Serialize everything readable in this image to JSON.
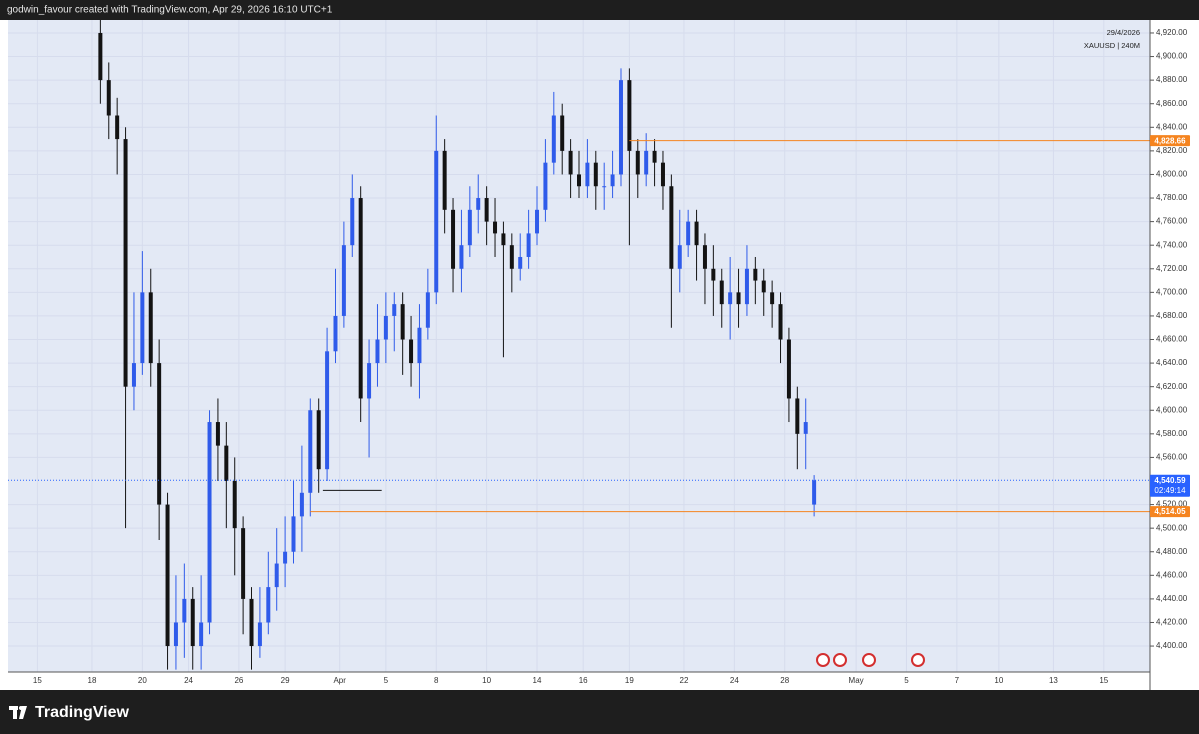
{
  "attribution": "godwin_favour created with TradingView.com, Apr 29, 2026 16:10 UTC+1",
  "brand": "TradingView",
  "chart_data": {
    "type": "candlestick",
    "annotations": [
      "29/4/2026",
      "XAUUSD | 240M"
    ],
    "up_color": "#2f5bea",
    "down_color": "#131313",
    "grid": true,
    "xlim": [
      0,
      272
    ],
    "ylim": [
      4378,
      4931
    ],
    "xticks": [
      {
        "value": 7,
        "label": "15"
      },
      {
        "value": 20,
        "label": "18"
      },
      {
        "value": 32,
        "label": "20"
      },
      {
        "value": 43,
        "label": "24"
      },
      {
        "value": 55,
        "label": "26"
      },
      {
        "value": 66,
        "label": "29"
      },
      {
        "value": 79,
        "label": "Apr"
      },
      {
        "value": 90,
        "label": "5"
      },
      {
        "value": 102,
        "label": "8"
      },
      {
        "value": 114,
        "label": "10"
      },
      {
        "value": 126,
        "label": "14"
      },
      {
        "value": 137,
        "label": "16"
      },
      {
        "value": 148,
        "label": "19"
      },
      {
        "value": 161,
        "label": "22"
      },
      {
        "value": 173,
        "label": "24"
      },
      {
        "value": 185,
        "label": "28"
      },
      {
        "value": 202,
        "label": "May"
      },
      {
        "value": 214,
        "label": "5"
      },
      {
        "value": 226,
        "label": "7"
      },
      {
        "value": 236,
        "label": "10"
      },
      {
        "value": 249,
        "label": "13"
      },
      {
        "value": 261,
        "label": "15"
      }
    ],
    "yticks": [
      {
        "value": 4400,
        "label": "4,400.00"
      },
      {
        "value": 4420,
        "label": "4,420.00"
      },
      {
        "value": 4440,
        "label": "4,440.00"
      },
      {
        "value": 4460,
        "label": "4,460.00"
      },
      {
        "value": 4480,
        "label": "4,480.00"
      },
      {
        "value": 4500,
        "label": "4,500.00"
      },
      {
        "value": 4520,
        "label": "4,520.00"
      },
      {
        "value": 4560,
        "label": "4,560.00"
      },
      {
        "value": 4580,
        "label": "4,580.00"
      },
      {
        "value": 4600,
        "label": "4,600.00"
      },
      {
        "value": 4620,
        "label": "4,620.00"
      },
      {
        "value": 4640,
        "label": "4,640.00"
      },
      {
        "value": 4660,
        "label": "4,660.00"
      },
      {
        "value": 4680,
        "label": "4,680.00"
      },
      {
        "value": 4700,
        "label": "4,700.00"
      },
      {
        "value": 4720,
        "label": "4,720.00"
      },
      {
        "value": 4740,
        "label": "4,740.00"
      },
      {
        "value": 4760,
        "label": "4,760.00"
      },
      {
        "value": 4780,
        "label": "4,780.00"
      },
      {
        "value": 4800,
        "label": "4,800.00"
      },
      {
        "value": 4820,
        "label": "4,820.00"
      },
      {
        "value": 4840,
        "label": "4,840.00"
      },
      {
        "value": 4860,
        "label": "4,860.00"
      },
      {
        "value": 4880,
        "label": "4,880.00"
      },
      {
        "value": 4900,
        "label": "4,900.00"
      },
      {
        "value": 4920,
        "label": "4,920.00"
      }
    ],
    "x": [
      22,
      24,
      26,
      28,
      30,
      32,
      34,
      36,
      38,
      40,
      42,
      44,
      46,
      48,
      50,
      52,
      54,
      56,
      58,
      60,
      62,
      64,
      66,
      68,
      70,
      72,
      74,
      76,
      78,
      80,
      82,
      84,
      86,
      88,
      90,
      92,
      94,
      96,
      98,
      100,
      102,
      104,
      106,
      108,
      110,
      112,
      114,
      116,
      118,
      120,
      122,
      124,
      126,
      128,
      130,
      132,
      134,
      136,
      138,
      140,
      142,
      144,
      146,
      148,
      150,
      152,
      154,
      156,
      158,
      160,
      162,
      164,
      166,
      168,
      170,
      172,
      174,
      176,
      178,
      180,
      182,
      184,
      186,
      188,
      190,
      192
    ],
    "open": [
      4920,
      4880,
      4850,
      4830,
      4620,
      4640,
      4700,
      4640,
      4520,
      4400,
      4420,
      4440,
      4400,
      4420,
      4590,
      4570,
      4540,
      4500,
      4440,
      4400,
      4420,
      4450,
      4470,
      4480,
      4510,
      4530,
      4600,
      4550,
      4650,
      4680,
      4740,
      4780,
      4610,
      4640,
      4660,
      4680,
      4690,
      4660,
      4640,
      4670,
      4700,
      4820,
      4770,
      4720,
      4740,
      4770,
      4780,
      4760,
      4750,
      4740,
      4720,
      4730,
      4750,
      4770,
      4810,
      4850,
      4820,
      4800,
      4790,
      4810,
      4790,
      4790,
      4800,
      4880,
      4820,
      4800,
      4820,
      4810,
      4790,
      4720,
      4740,
      4760,
      4740,
      4720,
      4710,
      4690,
      4700,
      4690,
      4720,
      4710,
      4700,
      4690,
      4660,
      4610,
      4580,
      4520
    ],
    "high": [
      4940,
      4895,
      4865,
      4840,
      4700,
      4735,
      4720,
      4660,
      4530,
      4460,
      4470,
      4450,
      4460,
      4600,
      4610,
      4590,
      4560,
      4510,
      4450,
      4450,
      4480,
      4500,
      4510,
      4540,
      4570,
      4610,
      4610,
      4670,
      4720,
      4760,
      4800,
      4790,
      4660,
      4690,
      4700,
      4700,
      4700,
      4680,
      4690,
      4720,
      4850,
      4830,
      4780,
      4770,
      4790,
      4800,
      4790,
      4780,
      4760,
      4750,
      4750,
      4770,
      4790,
      4830,
      4870,
      4860,
      4830,
      4820,
      4830,
      4820,
      4810,
      4820,
      4890,
      4890,
      4830,
      4835,
      4830,
      4820,
      4800,
      4770,
      4770,
      4770,
      4750,
      4740,
      4720,
      4730,
      4720,
      4740,
      4730,
      4720,
      4710,
      4700,
      4670,
      4620,
      4610,
      4545
    ],
    "low": [
      4860,
      4830,
      4800,
      4500,
      4600,
      4630,
      4620,
      4490,
      4380,
      4380,
      4390,
      4380,
      4380,
      4410,
      4540,
      4500,
      4460,
      4410,
      4380,
      4390,
      4410,
      4430,
      4450,
      4470,
      4480,
      4510,
      4530,
      4540,
      4640,
      4670,
      4730,
      4590,
      4560,
      4620,
      4640,
      4650,
      4630,
      4620,
      4610,
      4660,
      4690,
      4750,
      4700,
      4700,
      4730,
      4750,
      4740,
      4730,
      4645,
      4700,
      4710,
      4720,
      4740,
      4760,
      4800,
      4800,
      4780,
      4780,
      4780,
      4770,
      4770,
      4780,
      4790,
      4740,
      4780,
      4790,
      4790,
      4770,
      4670,
      4700,
      4730,
      4710,
      4690,
      4680,
      4670,
      4660,
      4670,
      4680,
      4690,
      4680,
      4670,
      4640,
      4590,
      4550,
      4550,
      4510
    ],
    "close": [
      4880,
      4850,
      4830,
      4620,
      4640,
      4700,
      4640,
      4520,
      4400,
      4420,
      4440,
      4400,
      4420,
      4590,
      4570,
      4540,
      4500,
      4440,
      4400,
      4420,
      4450,
      4470,
      4480,
      4510,
      4530,
      4600,
      4550,
      4650,
      4680,
      4740,
      4780,
      4610,
      4640,
      4660,
      4680,
      4690,
      4660,
      4640,
      4670,
      4700,
      4820,
      4770,
      4720,
      4740,
      4770,
      4780,
      4760,
      4750,
      4740,
      4720,
      4730,
      4750,
      4770,
      4810,
      4850,
      4820,
      4800,
      4790,
      4810,
      4790,
      4790,
      4800,
      4880,
      4820,
      4800,
      4820,
      4810,
      4790,
      4720,
      4740,
      4760,
      4740,
      4720,
      4710,
      4690,
      4700,
      4690,
      4720,
      4710,
      4700,
      4690,
      4660,
      4610,
      4580,
      4590,
      4540.59
    ],
    "price_lines": [
      {
        "value": 4828.66,
        "label": "4,828.66",
        "color": "#f5841f",
        "start": 148
      },
      {
        "value": 4514.05,
        "label": "4,514.05",
        "color": "#f5841f",
        "start": 72
      },
      {
        "value": 4540.59,
        "label": "4,540.59",
        "countdown": "02:49:14",
        "color": "#2962ff",
        "style": "dotted",
        "start": 0
      },
      {
        "value": 4532,
        "color": "#131313",
        "start": 75,
        "end": 89
      }
    ]
  }
}
